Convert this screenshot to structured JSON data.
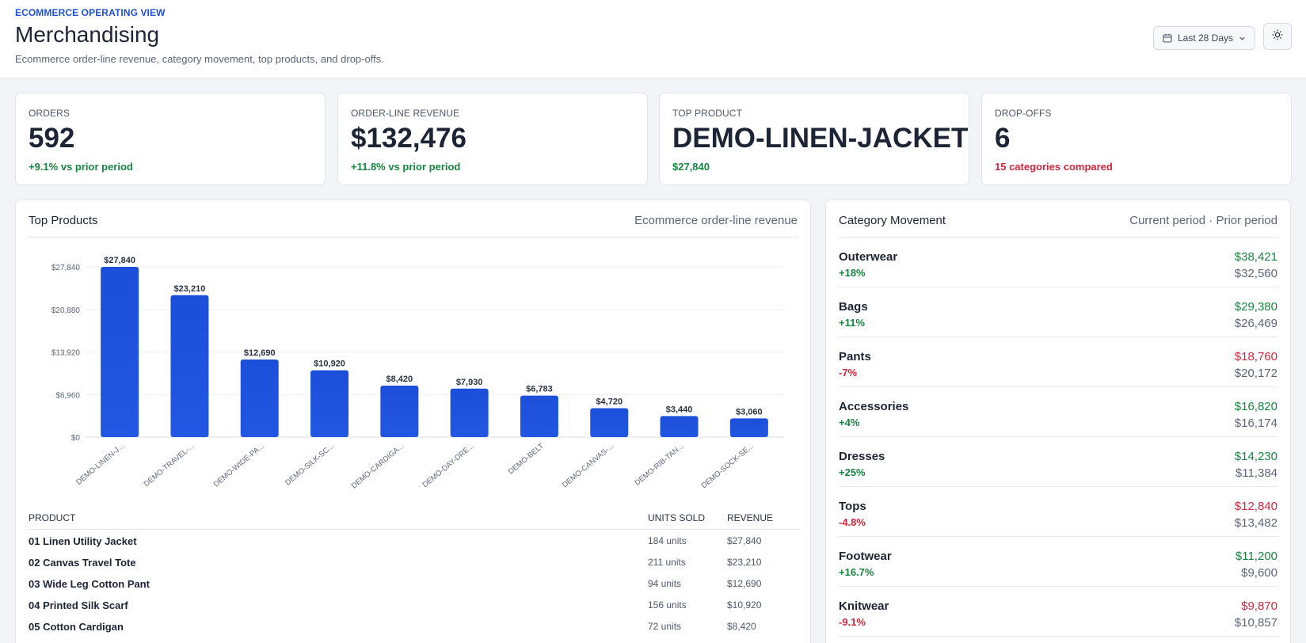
{
  "header": {
    "eyebrow": "ECOMMERCE OPERATING VIEW",
    "title": "Merchandising",
    "subtitle": "Ecommerce order-line revenue, category movement, top products, and drop-offs.",
    "date_range": "Last 28 Days",
    "icons": {
      "calendar": "calendar-icon",
      "chevron": "chevron-down-icon",
      "theme": "sun-icon"
    }
  },
  "kpis": [
    {
      "label": "ORDERS",
      "value": "592",
      "delta": "+9.1% vs prior period",
      "tone": "positive"
    },
    {
      "label": "ORDER-LINE REVENUE",
      "value": "$132,476",
      "delta": "+11.8% vs prior period",
      "tone": "positive"
    },
    {
      "label": "TOP PRODUCT",
      "value": "DEMO-LINEN-JACKET",
      "delta": "$27,840",
      "tone": "positive"
    },
    {
      "label": "DROP-OFFS",
      "value": "6",
      "delta": "15 categories compared",
      "tone": "negative"
    }
  ],
  "top_products": {
    "title": "Top Products",
    "meta": "Ecommerce order-line revenue",
    "table_headers": {
      "product": "PRODUCT",
      "units": "UNITS SOLD",
      "revenue": "REVENUE"
    },
    "rows": [
      {
        "product": "01 Linen Utility Jacket",
        "units": "184 units",
        "revenue": "$27,840"
      },
      {
        "product": "02 Canvas Travel Tote",
        "units": "211 units",
        "revenue": "$23,210"
      },
      {
        "product": "03 Wide Leg Cotton Pant",
        "units": "94 units",
        "revenue": "$12,690"
      },
      {
        "product": "04 Printed Silk Scarf",
        "units": "156 units",
        "revenue": "$10,920"
      },
      {
        "product": "05 Cotton Cardigan",
        "units": "72 units",
        "revenue": "$8,420"
      }
    ]
  },
  "chart_data": {
    "type": "bar",
    "categories": [
      "DEMO-LINEN-J...",
      "DEMO-TRAVEL-...",
      "DEMO-WIDE-PA...",
      "DEMO-SILK-SC...",
      "DEMO-CARDIGA...",
      "DEMO-DAY-DRE...",
      "DEMO-BELT",
      "DEMO-CANVAS-...",
      "DEMO-RIB-TAN...",
      "DEMO-SOCK-SE..."
    ],
    "values": [
      27840,
      23210,
      12690,
      10920,
      8420,
      7930,
      6783,
      4720,
      3440,
      3060
    ],
    "value_labels": [
      "$27,840",
      "$23,210",
      "$12,690",
      "$10,920",
      "$8,420",
      "$7,930",
      "$6,783",
      "$4,720",
      "$3,440",
      "$3,060"
    ],
    "yticks": [
      0,
      6960,
      13920,
      20880,
      27840
    ],
    "ytick_labels": [
      "$0",
      "$6,960",
      "$13,920",
      "$20,880",
      "$27,840"
    ],
    "ylim": [
      0,
      27840
    ],
    "grid": true,
    "bar_color": "#2257e2",
    "title": "",
    "xlabel": "",
    "ylabel": ""
  },
  "category_movement": {
    "title": "Category Movement",
    "meta": "Current period · Prior period",
    "rows": [
      {
        "name": "Outerwear",
        "change": "+18%",
        "current": "$38,421",
        "prior": "$32,560",
        "tone": "positive"
      },
      {
        "name": "Bags",
        "change": "+11%",
        "current": "$29,380",
        "prior": "$26,469",
        "tone": "positive"
      },
      {
        "name": "Pants",
        "change": "-7%",
        "current": "$18,760",
        "prior": "$20,172",
        "tone": "negative"
      },
      {
        "name": "Accessories",
        "change": "+4%",
        "current": "$16,820",
        "prior": "$16,174",
        "tone": "positive"
      },
      {
        "name": "Dresses",
        "change": "+25%",
        "current": "$14,230",
        "prior": "$11,384",
        "tone": "positive"
      },
      {
        "name": "Tops",
        "change": "-4.8%",
        "current": "$12,840",
        "prior": "$13,482",
        "tone": "negative"
      },
      {
        "name": "Footwear",
        "change": "+16.7%",
        "current": "$11,200",
        "prior": "$9,600",
        "tone": "positive"
      },
      {
        "name": "Knitwear",
        "change": "-9.1%",
        "current": "$9,870",
        "prior": "$10,857",
        "tone": "negative"
      }
    ]
  },
  "colors": {
    "accent": "#1f51d6",
    "positive": "#17853f",
    "negative": "#d1263c",
    "bar": "#2257e2"
  }
}
